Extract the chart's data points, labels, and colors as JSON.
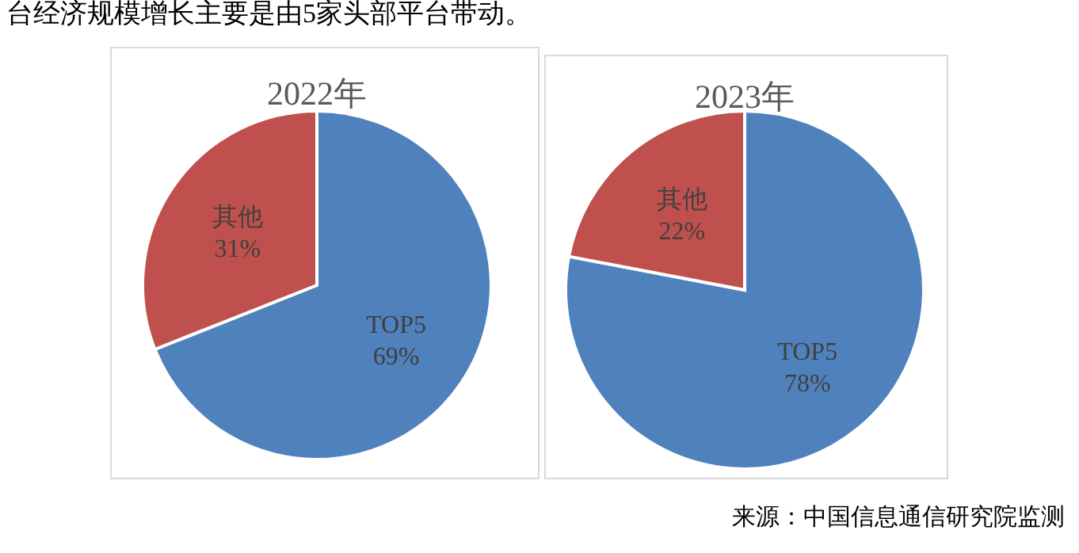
{
  "chart_data": [
    {
      "type": "pie",
      "title": "2022年",
      "categories": [
        "TOP5",
        "其他"
      ],
      "values": [
        69,
        31
      ],
      "colors": [
        "#4f81bd",
        "#c0504d"
      ],
      "value_labels": [
        "69%",
        "31%"
      ],
      "annotations": [
        "台经济规模增长主要是由5家头部平台带动。"
      ]
    },
    {
      "type": "pie",
      "title": "2023年",
      "categories": [
        "TOP5",
        "其他"
      ],
      "values": [
        78,
        22
      ],
      "colors": [
        "#4f81bd",
        "#c0504d"
      ],
      "value_labels": [
        "78%",
        "22%"
      ],
      "annotations": [
        "来源：中国信息通信研究院监测"
      ]
    }
  ]
}
